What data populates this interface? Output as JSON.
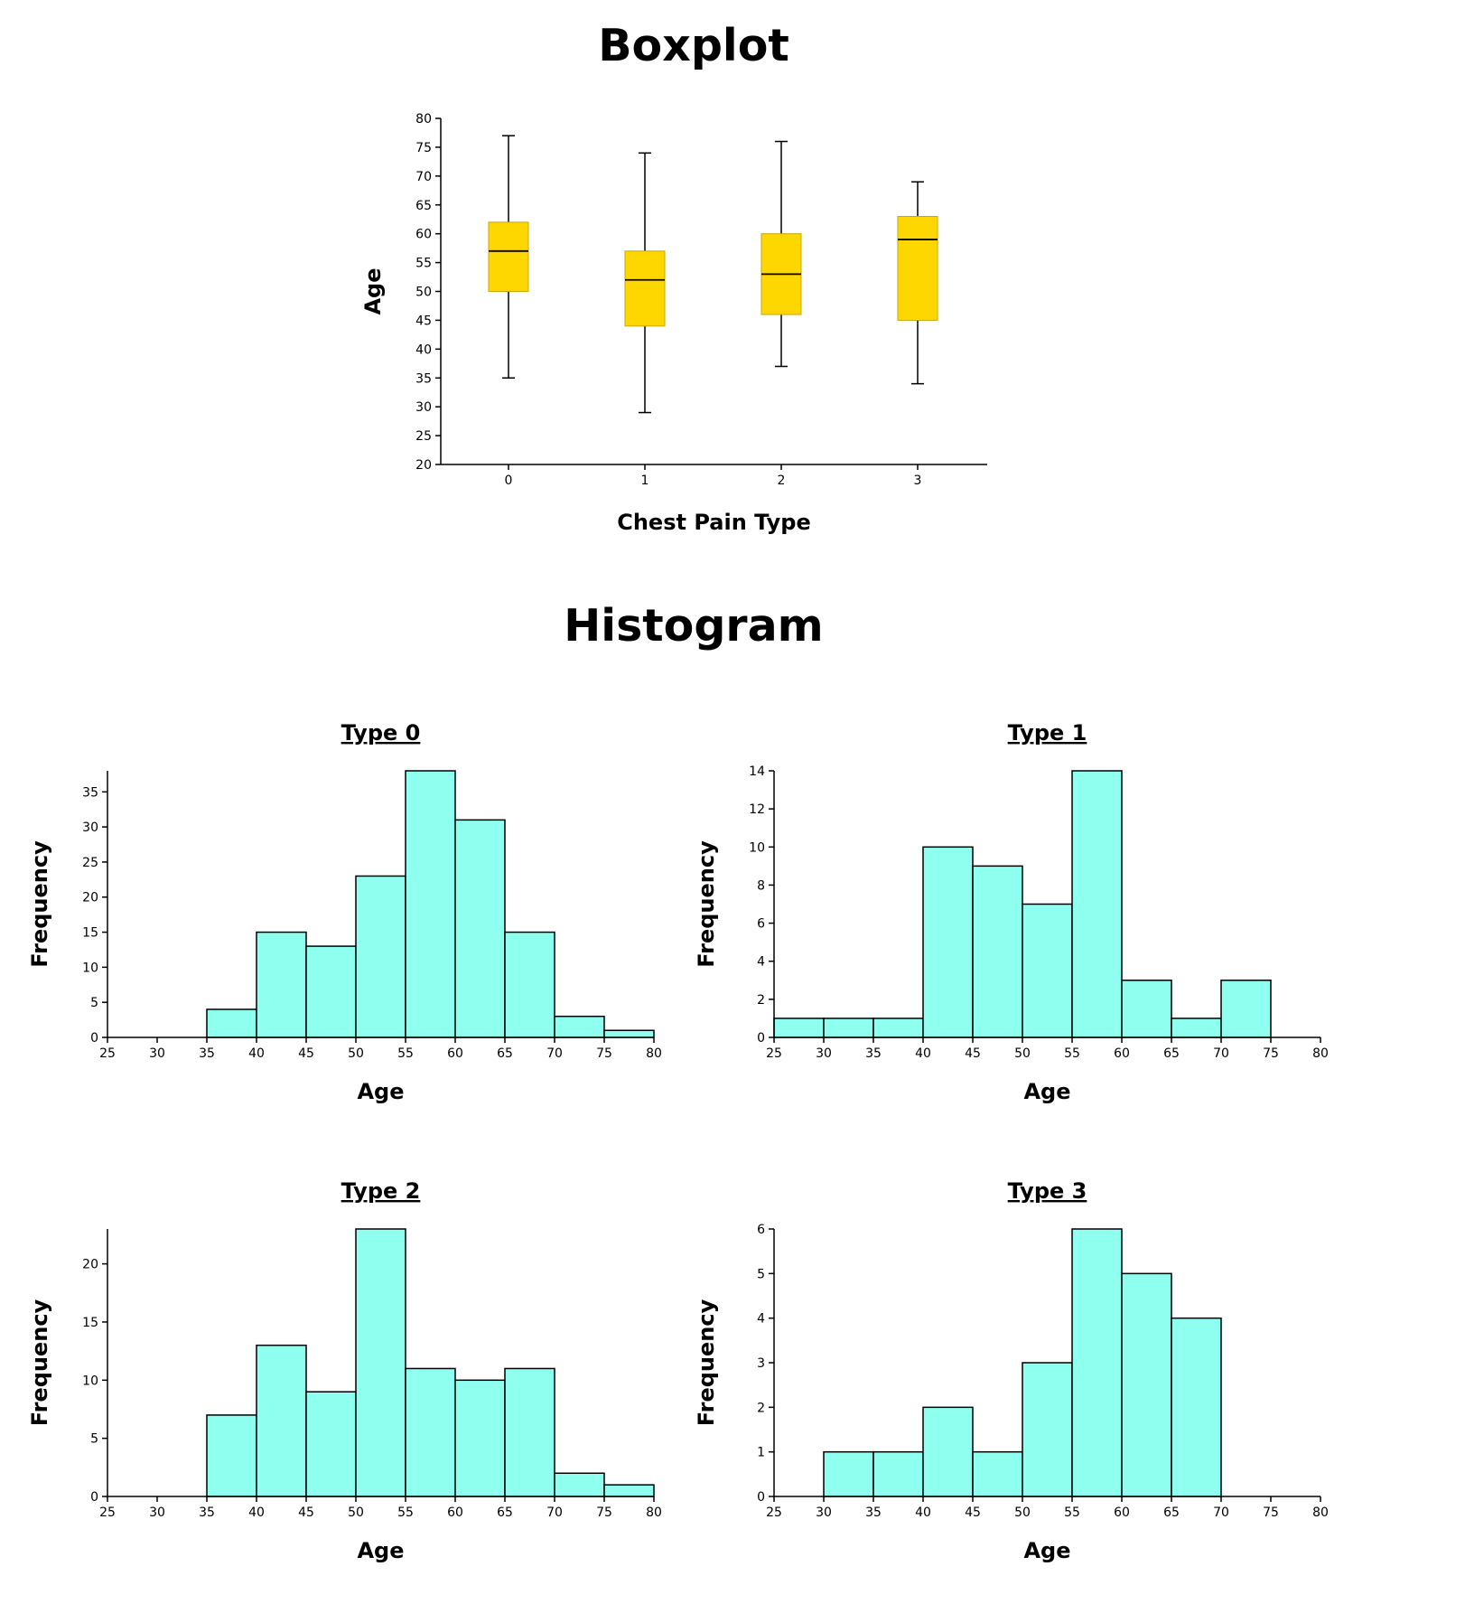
{
  "titles": {
    "boxplot": "Boxplot",
    "histogram": "Histogram"
  },
  "chart_data": [
    {
      "type": "box",
      "title": "Boxplot",
      "xlabel": "Chest Pain Type",
      "ylabel": "Age",
      "ylim": [
        20,
        80
      ],
      "yticks": [
        20,
        25,
        30,
        35,
        40,
        45,
        50,
        55,
        60,
        65,
        70,
        75,
        80
      ],
      "categories": [
        "0",
        "1",
        "2",
        "3"
      ],
      "boxes": [
        {
          "category": "0",
          "min": 35,
          "q1": 50,
          "median": 57,
          "q3": 62,
          "max": 77
        },
        {
          "category": "1",
          "min": 29,
          "q1": 44,
          "median": 52,
          "q3": 57,
          "max": 74
        },
        {
          "category": "2",
          "min": 37,
          "q1": 46,
          "median": 53,
          "q3": 60,
          "max": 76
        },
        {
          "category": "3",
          "min": 34,
          "q1": 45,
          "median": 59,
          "q3": 63,
          "max": 69
        }
      ],
      "colors": {
        "box": "#ffd700",
        "line": "#000000"
      }
    },
    {
      "type": "histogram",
      "title": "Type 0",
      "xlabel": "Age",
      "ylabel": "Frequency",
      "xlim": [
        25,
        80
      ],
      "ylim": [
        0,
        38
      ],
      "xticks": [
        25,
        30,
        35,
        40,
        45,
        50,
        55,
        60,
        65,
        70,
        75,
        80
      ],
      "yticks": [
        0,
        5,
        10,
        15,
        20,
        25,
        30,
        35
      ],
      "bins": [
        {
          "x0": 35,
          "x1": 40,
          "count": 4
        },
        {
          "x0": 40,
          "x1": 45,
          "count": 15
        },
        {
          "x0": 45,
          "x1": 50,
          "count": 13
        },
        {
          "x0": 50,
          "x1": 55,
          "count": 23
        },
        {
          "x0": 55,
          "x1": 60,
          "count": 38
        },
        {
          "x0": 60,
          "x1": 65,
          "count": 31
        },
        {
          "x0": 65,
          "x1": 70,
          "count": 15
        },
        {
          "x0": 70,
          "x1": 75,
          "count": 3
        },
        {
          "x0": 75,
          "x1": 80,
          "count": 1
        }
      ],
      "colors": {
        "bar": "#8ffff0",
        "edge": "#000000"
      }
    },
    {
      "type": "histogram",
      "title": "Type 1",
      "xlabel": "Age",
      "ylabel": "Frequency",
      "xlim": [
        25,
        80
      ],
      "ylim": [
        0,
        14
      ],
      "xticks": [
        25,
        30,
        35,
        40,
        45,
        50,
        55,
        60,
        65,
        70,
        75,
        80
      ],
      "yticks": [
        0,
        2,
        4,
        6,
        8,
        10,
        12,
        14
      ],
      "bins": [
        {
          "x0": 25,
          "x1": 30,
          "count": 1
        },
        {
          "x0": 30,
          "x1": 35,
          "count": 1
        },
        {
          "x0": 35,
          "x1": 40,
          "count": 1
        },
        {
          "x0": 40,
          "x1": 45,
          "count": 10
        },
        {
          "x0": 45,
          "x1": 50,
          "count": 9
        },
        {
          "x0": 50,
          "x1": 55,
          "count": 7
        },
        {
          "x0": 55,
          "x1": 60,
          "count": 14
        },
        {
          "x0": 60,
          "x1": 65,
          "count": 3
        },
        {
          "x0": 65,
          "x1": 70,
          "count": 1
        },
        {
          "x0": 70,
          "x1": 75,
          "count": 3
        }
      ],
      "colors": {
        "bar": "#8ffff0",
        "edge": "#000000"
      }
    },
    {
      "type": "histogram",
      "title": "Type 2",
      "xlabel": "Age",
      "ylabel": "Frequency",
      "xlim": [
        25,
        80
      ],
      "ylim": [
        0,
        23
      ],
      "xticks": [
        25,
        30,
        35,
        40,
        45,
        50,
        55,
        60,
        65,
        70,
        75,
        80
      ],
      "yticks": [
        0,
        5,
        10,
        15,
        20
      ],
      "bins": [
        {
          "x0": 35,
          "x1": 40,
          "count": 7
        },
        {
          "x0": 40,
          "x1": 45,
          "count": 13
        },
        {
          "x0": 45,
          "x1": 50,
          "count": 9
        },
        {
          "x0": 50,
          "x1": 55,
          "count": 23
        },
        {
          "x0": 55,
          "x1": 60,
          "count": 11
        },
        {
          "x0": 60,
          "x1": 65,
          "count": 10
        },
        {
          "x0": 65,
          "x1": 70,
          "count": 11
        },
        {
          "x0": 70,
          "x1": 75,
          "count": 2
        },
        {
          "x0": 75,
          "x1": 80,
          "count": 1
        }
      ],
      "colors": {
        "bar": "#8ffff0",
        "edge": "#000000"
      }
    },
    {
      "type": "histogram",
      "title": "Type 3",
      "xlabel": "Age",
      "ylabel": "Frequency",
      "xlim": [
        25,
        80
      ],
      "ylim": [
        0,
        6
      ],
      "xticks": [
        25,
        30,
        35,
        40,
        45,
        50,
        55,
        60,
        65,
        70,
        75,
        80
      ],
      "yticks": [
        0,
        1,
        2,
        3,
        4,
        5,
        6
      ],
      "bins": [
        {
          "x0": 30,
          "x1": 35,
          "count": 1
        },
        {
          "x0": 35,
          "x1": 40,
          "count": 1
        },
        {
          "x0": 40,
          "x1": 45,
          "count": 2
        },
        {
          "x0": 45,
          "x1": 50,
          "count": 1
        },
        {
          "x0": 50,
          "x1": 55,
          "count": 3
        },
        {
          "x0": 55,
          "x1": 60,
          "count": 6
        },
        {
          "x0": 60,
          "x1": 65,
          "count": 5
        },
        {
          "x0": 65,
          "x1": 70,
          "count": 4
        }
      ],
      "colors": {
        "bar": "#8ffff0",
        "edge": "#000000"
      }
    }
  ]
}
